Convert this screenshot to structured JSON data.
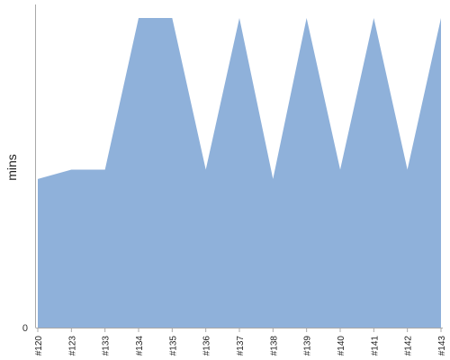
{
  "chart_data": {
    "type": "area",
    "title": "",
    "xlabel": "",
    "ylabel": "mins",
    "ylim": [
      0,
      10
    ],
    "y_ticks": [
      "0"
    ],
    "grid": false,
    "legend": "none",
    "categories": [
      "#120",
      "#123",
      "#133",
      "#134",
      "#135",
      "#136",
      "#137",
      "#138",
      "#139",
      "#140",
      "#141",
      "#142",
      "#143"
    ],
    "series": [
      {
        "values": [
          4.8,
          5.1,
          5.1,
          10,
          10,
          5.1,
          10,
          4.8,
          10,
          5.1,
          10,
          5.1,
          10
        ],
        "color": "#8fb1da"
      }
    ]
  }
}
